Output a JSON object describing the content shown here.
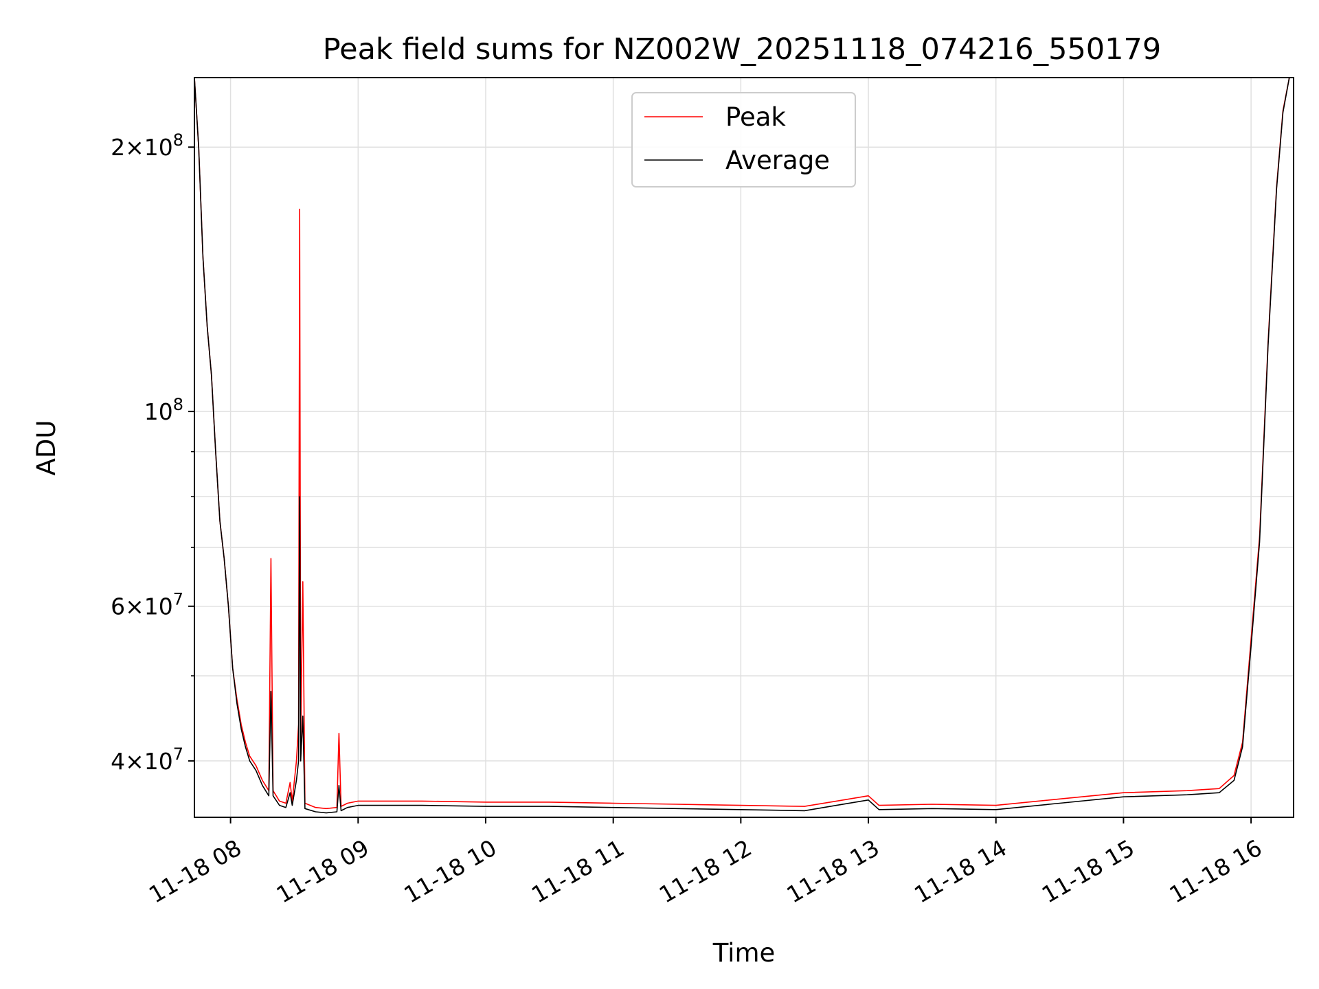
{
  "chart_data": {
    "type": "line",
    "title": "Peak field sums for NZ002W_20251118_074216_550179",
    "xlabel": "Time",
    "ylabel": "ADU",
    "x_axis": "time",
    "y_scale": "log",
    "xlim": [
      "2025-11-18 07:43",
      "2025-11-18 16:20"
    ],
    "ylim": [
      34500000,
      240000000
    ],
    "grid": true,
    "legend_position": "top-center",
    "x_ticks": [
      {
        "t": "2025-11-18 08:00",
        "label": "11-18 08"
      },
      {
        "t": "2025-11-18 09:00",
        "label": "11-18 09"
      },
      {
        "t": "2025-11-18 10:00",
        "label": "11-18 10"
      },
      {
        "t": "2025-11-18 11:00",
        "label": "11-18 11"
      },
      {
        "t": "2025-11-18 12:00",
        "label": "11-18 12"
      },
      {
        "t": "2025-11-18 13:00",
        "label": "11-18 13"
      },
      {
        "t": "2025-11-18 14:00",
        "label": "11-18 14"
      },
      {
        "t": "2025-11-18 15:00",
        "label": "11-18 15"
      },
      {
        "t": "2025-11-18 16:00",
        "label": "11-18 16"
      }
    ],
    "y_major_ticks": [
      {
        "value": 40000000,
        "mantissa": "4",
        "exponent": "7"
      },
      {
        "value": 60000000,
        "mantissa": "6",
        "exponent": "7"
      },
      {
        "value": 100000000,
        "mantissa": "",
        "exponent": "8"
      },
      {
        "value": 200000000,
        "mantissa": "2",
        "exponent": "8"
      }
    ],
    "y_minor_ticks": [
      50000000,
      70000000,
      80000000,
      90000000
    ],
    "series": [
      {
        "name": "Peak",
        "color": "#ff0000",
        "points": [
          [
            "2025-11-18 07:43",
            240000000
          ],
          [
            "2025-11-18 07:45",
            200000000
          ],
          [
            "2025-11-18 07:47",
            150000000
          ],
          [
            "2025-11-18 07:49",
            125000000
          ],
          [
            "2025-11-18 07:51",
            110000000
          ],
          [
            "2025-11-18 07:53",
            90000000
          ],
          [
            "2025-11-18 07:55",
            75000000
          ],
          [
            "2025-11-18 07:57",
            68000000
          ],
          [
            "2025-11-18 07:59",
            60000000
          ],
          [
            "2025-11-18 08:01",
            51000000
          ],
          [
            "2025-11-18 08:03",
            47000000
          ],
          [
            "2025-11-18 08:05",
            44000000
          ],
          [
            "2025-11-18 08:07",
            42000000
          ],
          [
            "2025-11-18 08:09",
            40500000
          ],
          [
            "2025-11-18 08:12",
            39500000
          ],
          [
            "2025-11-18 08:15",
            38000000
          ],
          [
            "2025-11-18 08:18",
            37000000
          ],
          [
            "2025-11-18 08:19",
            68000000
          ],
          [
            "2025-11-18 08:20",
            37000000
          ],
          [
            "2025-11-18 08:23",
            36000000
          ],
          [
            "2025-11-18 08:26",
            35800000
          ],
          [
            "2025-11-18 08:28",
            37800000
          ],
          [
            "2025-11-18 08:29",
            36000000
          ],
          [
            "2025-11-18 08:31",
            40000000
          ],
          [
            "2025-11-18 08:32",
            44000000
          ],
          [
            "2025-11-18 08:32.5",
            170000000
          ],
          [
            "2025-11-18 08:33",
            42000000
          ],
          [
            "2025-11-18 08:34",
            64000000
          ],
          [
            "2025-11-18 08:35",
            35800000
          ],
          [
            "2025-11-18 08:40",
            35400000
          ],
          [
            "2025-11-18 08:45",
            35300000
          ],
          [
            "2025-11-18 08:50",
            35400000
          ],
          [
            "2025-11-18 08:51",
            43000000
          ],
          [
            "2025-11-18 08:52",
            35500000
          ],
          [
            "2025-11-18 08:55",
            35800000
          ],
          [
            "2025-11-18 09:00",
            36000000
          ],
          [
            "2025-11-18 09:30",
            36000000
          ],
          [
            "2025-11-18 10:00",
            35900000
          ],
          [
            "2025-11-18 10:30",
            35900000
          ],
          [
            "2025-11-18 11:00",
            35800000
          ],
          [
            "2025-11-18 11:30",
            35700000
          ],
          [
            "2025-11-18 12:00",
            35600000
          ],
          [
            "2025-11-18 12:30",
            35500000
          ],
          [
            "2025-11-18 12:45",
            36000000
          ],
          [
            "2025-11-18 13:00",
            36500000
          ],
          [
            "2025-11-18 13:05",
            35600000
          ],
          [
            "2025-11-18 13:30",
            35700000
          ],
          [
            "2025-11-18 14:00",
            35600000
          ],
          [
            "2025-11-18 14:30",
            36200000
          ],
          [
            "2025-11-18 15:00",
            36800000
          ],
          [
            "2025-11-18 15:30",
            37000000
          ],
          [
            "2025-11-18 15:45",
            37200000
          ],
          [
            "2025-11-18 15:52",
            38500000
          ],
          [
            "2025-11-18 15:56",
            42000000
          ],
          [
            "2025-11-18 16:00",
            55000000
          ],
          [
            "2025-11-18 16:04",
            72000000
          ],
          [
            "2025-11-18 16:08",
            120000000
          ],
          [
            "2025-11-18 16:12",
            180000000
          ],
          [
            "2025-11-18 16:15",
            220000000
          ],
          [
            "2025-11-18 16:18",
            240000000
          ],
          [
            "2025-11-18 16:20",
            240000000
          ]
        ]
      },
      {
        "name": "Average",
        "color": "#000000",
        "points": [
          [
            "2025-11-18 07:43",
            240000000
          ],
          [
            "2025-11-18 07:45",
            200000000
          ],
          [
            "2025-11-18 07:47",
            150000000
          ],
          [
            "2025-11-18 07:49",
            125000000
          ],
          [
            "2025-11-18 07:51",
            110000000
          ],
          [
            "2025-11-18 07:53",
            90000000
          ],
          [
            "2025-11-18 07:55",
            75000000
          ],
          [
            "2025-11-18 07:57",
            68000000
          ],
          [
            "2025-11-18 07:59",
            60000000
          ],
          [
            "2025-11-18 08:01",
            51000000
          ],
          [
            "2025-11-18 08:03",
            46500000
          ],
          [
            "2025-11-18 08:05",
            43500000
          ],
          [
            "2025-11-18 08:07",
            41500000
          ],
          [
            "2025-11-18 08:09",
            40000000
          ],
          [
            "2025-11-18 08:12",
            39000000
          ],
          [
            "2025-11-18 08:15",
            37500000
          ],
          [
            "2025-11-18 08:18",
            36500000
          ],
          [
            "2025-11-18 08:19",
            48000000
          ],
          [
            "2025-11-18 08:20",
            36500000
          ],
          [
            "2025-11-18 08:23",
            35600000
          ],
          [
            "2025-11-18 08:26",
            35400000
          ],
          [
            "2025-11-18 08:28",
            36800000
          ],
          [
            "2025-11-18 08:29",
            35600000
          ],
          [
            "2025-11-18 08:31",
            38000000
          ],
          [
            "2025-11-18 08:32",
            40000000
          ],
          [
            "2025-11-18 08:32.5",
            80000000
          ],
          [
            "2025-11-18 08:33",
            40000000
          ],
          [
            "2025-11-18 08:34",
            45000000
          ],
          [
            "2025-11-18 08:35",
            35300000
          ],
          [
            "2025-11-18 08:40",
            35000000
          ],
          [
            "2025-11-18 08:45",
            34900000
          ],
          [
            "2025-11-18 08:50",
            35000000
          ],
          [
            "2025-11-18 08:51",
            37500000
          ],
          [
            "2025-11-18 08:52",
            35100000
          ],
          [
            "2025-11-18 08:55",
            35400000
          ],
          [
            "2025-11-18 09:00",
            35600000
          ],
          [
            "2025-11-18 09:30",
            35600000
          ],
          [
            "2025-11-18 10:00",
            35500000
          ],
          [
            "2025-11-18 10:30",
            35500000
          ],
          [
            "2025-11-18 11:00",
            35400000
          ],
          [
            "2025-11-18 11:30",
            35300000
          ],
          [
            "2025-11-18 12:00",
            35200000
          ],
          [
            "2025-11-18 12:30",
            35100000
          ],
          [
            "2025-11-18 12:45",
            35600000
          ],
          [
            "2025-11-18 13:00",
            36100000
          ],
          [
            "2025-11-18 13:05",
            35200000
          ],
          [
            "2025-11-18 13:30",
            35300000
          ],
          [
            "2025-11-18 14:00",
            35200000
          ],
          [
            "2025-11-18 14:30",
            35800000
          ],
          [
            "2025-11-18 15:00",
            36400000
          ],
          [
            "2025-11-18 15:30",
            36600000
          ],
          [
            "2025-11-18 15:45",
            36800000
          ],
          [
            "2025-11-18 15:52",
            38000000
          ],
          [
            "2025-11-18 15:56",
            41500000
          ],
          [
            "2025-11-18 16:00",
            54000000
          ],
          [
            "2025-11-18 16:04",
            71000000
          ],
          [
            "2025-11-18 16:08",
            119000000
          ],
          [
            "2025-11-18 16:12",
            179000000
          ],
          [
            "2025-11-18 16:15",
            219000000
          ],
          [
            "2025-11-18 16:18",
            240000000
          ],
          [
            "2025-11-18 16:20",
            240000000
          ]
        ]
      }
    ]
  }
}
